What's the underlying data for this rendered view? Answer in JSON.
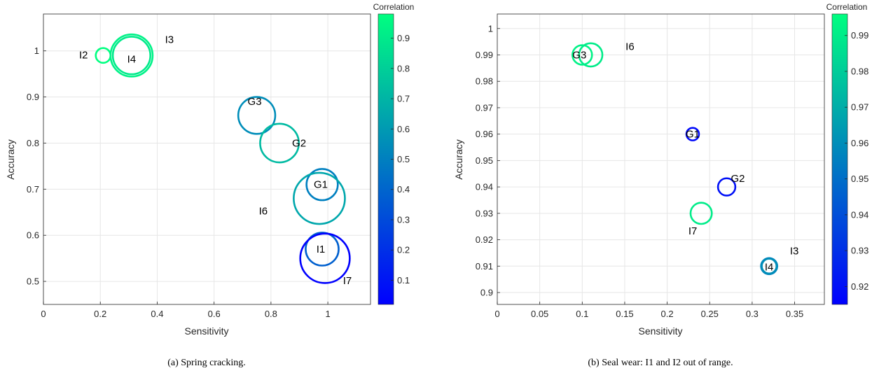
{
  "chart_data": [
    {
      "type": "scatter",
      "caption": "(a) Spring cracking.",
      "xlabel": "Sensitivity",
      "ylabel": "Accuracy",
      "xlim": [
        0,
        1.15
      ],
      "ylim": [
        0.45,
        1.08
      ],
      "xticks": [
        0,
        0.2,
        0.4,
        0.6,
        0.8,
        1
      ],
      "xtick_labels": [
        "0",
        "0.2",
        "0.4",
        "0.6",
        "0.8",
        "1"
      ],
      "yticks": [
        0.5,
        0.6,
        0.7,
        0.8,
        0.9,
        1
      ],
      "ytick_labels": [
        "0.5",
        "0.6",
        "0.7",
        "0.8",
        "0.9",
        "1"
      ],
      "grid": true,
      "colorbar": {
        "title": "Correlation",
        "range": [
          0.02,
          0.98
        ],
        "ticks": [
          0.1,
          0.2,
          0.3,
          0.4,
          0.5,
          0.6,
          0.7,
          0.8,
          0.9
        ],
        "tick_labels": [
          "0.1",
          "0.2",
          "0.3",
          "0.4",
          "0.5",
          "0.6",
          "0.7",
          "0.8",
          "0.9"
        ],
        "color_low": "#0000ff",
        "color_high": "#00ff80"
      },
      "points": [
        {
          "label": "I2",
          "x": 0.21,
          "y": 0.99,
          "correlation": 0.98,
          "size": 0.026
        },
        {
          "label": "I3",
          "x": 0.31,
          "y": 0.99,
          "correlation": 0.93,
          "size": 0.074
        },
        {
          "label": "I4",
          "x": 0.31,
          "y": 0.99,
          "correlation": 0.9,
          "size": 0.066
        },
        {
          "label": "G3",
          "x": 0.75,
          "y": 0.86,
          "correlation": 0.55,
          "size": 0.065
        },
        {
          "label": "G2",
          "x": 0.83,
          "y": 0.8,
          "correlation": 0.72,
          "size": 0.068
        },
        {
          "label": "G1",
          "x": 0.98,
          "y": 0.71,
          "correlation": 0.5,
          "size": 0.055
        },
        {
          "label": "I6",
          "x": 0.97,
          "y": 0.68,
          "correlation": 0.65,
          "size": 0.09
        },
        {
          "label": "I1",
          "x": 0.98,
          "y": 0.57,
          "correlation": 0.38,
          "size": 0.058
        },
        {
          "label": "I7",
          "x": 0.99,
          "y": 0.55,
          "correlation": 0.02,
          "size": 0.087
        }
      ]
    },
    {
      "type": "scatter",
      "caption": "(b) Seal wear: I1 and I2 out of range.",
      "xlabel": "Sensitivity",
      "ylabel": "Accuracy",
      "xlim": [
        0,
        0.385
      ],
      "ylim": [
        0.8955,
        1.0055
      ],
      "xticks": [
        0,
        0.05,
        0.1,
        0.15,
        0.2,
        0.25,
        0.3,
        0.35
      ],
      "xtick_labels": [
        "0",
        "0.05",
        "0.1",
        "0.15",
        "0.2",
        "0.25",
        "0.3",
        "0.35"
      ],
      "yticks": [
        0.9,
        0.91,
        0.92,
        0.93,
        0.94,
        0.95,
        0.96,
        0.97,
        0.98,
        0.99,
        1
      ],
      "ytick_labels": [
        "0.9",
        "0.91",
        "0.92",
        "0.93",
        "0.94",
        "0.95",
        "0.96",
        "0.97",
        "0.98",
        "0.99",
        "1"
      ],
      "grid": true,
      "colorbar": {
        "title": "Correlation",
        "range": [
          0.915,
          0.996
        ],
        "ticks": [
          0.92,
          0.93,
          0.94,
          0.95,
          0.96,
          0.97,
          0.98,
          0.99
        ],
        "tick_labels": [
          "0.92",
          "0.93",
          "0.94",
          "0.95",
          "0.96",
          "0.97",
          "0.98",
          "0.99"
        ],
        "color_low": "#0000ff",
        "color_high": "#00ff80"
      },
      "points": [
        {
          "label": "G3",
          "x": 0.1,
          "y": 0.99,
          "correlation": 0.992,
          "size": 0.0115
        },
        {
          "label": "I6",
          "x": 0.11,
          "y": 0.99,
          "correlation": 0.99,
          "size": 0.0137
        },
        {
          "label": "G1",
          "x": 0.23,
          "y": 0.96,
          "correlation": 0.918,
          "size": 0.0074
        },
        {
          "label": "G2",
          "x": 0.27,
          "y": 0.94,
          "correlation": 0.92,
          "size": 0.0102
        },
        {
          "label": "I7",
          "x": 0.24,
          "y": 0.93,
          "correlation": 0.99,
          "size": 0.0125
        },
        {
          "label": "I3",
          "x": 0.32,
          "y": 0.91,
          "correlation": 0.957,
          "size": 0.0095
        },
        {
          "label": "I4",
          "x": 0.32,
          "y": 0.91,
          "correlation": 0.96,
          "size": 0.0087
        }
      ]
    }
  ]
}
